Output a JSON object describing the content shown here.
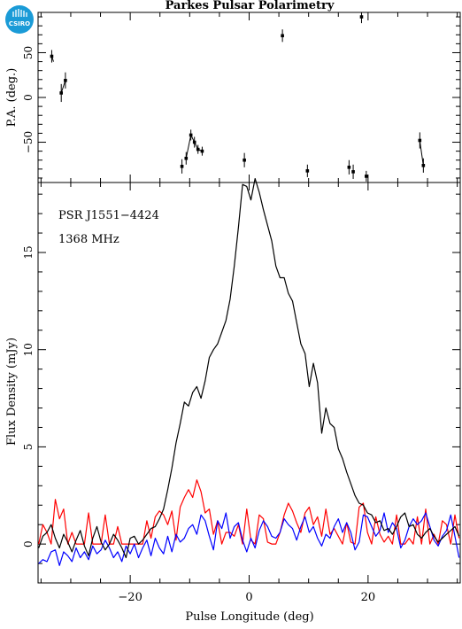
{
  "title": "Parkes Pulsar Polarimetry",
  "logo": {
    "text": "CSIRO",
    "color": "#1a9bd7"
  },
  "pulsar_label": "PSR J1551−4424",
  "freq_label": "1368 MHz",
  "colors": {
    "total": "#000000",
    "linear": "#ff0000",
    "circular": "#0000ff"
  },
  "chart_data": [
    {
      "type": "scatter",
      "title": "Parkes Pulsar Polarimetry",
      "ylabel": "P.A. (deg.)",
      "xlim": [
        -35.5,
        35.5
      ],
      "ylim": [
        -95,
        95
      ],
      "yticks": [
        -50,
        0,
        50
      ],
      "ytick_labels": [
        "−50",
        "0",
        "50"
      ],
      "points": [
        {
          "x": -33.2,
          "y": 46,
          "err": 7
        },
        {
          "x": -31.6,
          "y": 5,
          "err": 10
        },
        {
          "x": -30.9,
          "y": 19,
          "err": 9
        },
        {
          "x": -11.3,
          "y": -77,
          "err": 8
        },
        {
          "x": -10.6,
          "y": -68,
          "err": 7
        },
        {
          "x": -9.8,
          "y": -42,
          "err": 6
        },
        {
          "x": -9.2,
          "y": -50,
          "err": 6
        },
        {
          "x": -8.6,
          "y": -58,
          "err": 5
        },
        {
          "x": -7.9,
          "y": -60,
          "err": 5
        },
        {
          "x": -0.8,
          "y": -70,
          "err": 8
        },
        {
          "x": 5.6,
          "y": 69,
          "err": 7
        },
        {
          "x": 9.8,
          "y": -82,
          "err": 7
        },
        {
          "x": 16.8,
          "y": -78,
          "err": 8
        },
        {
          "x": 17.5,
          "y": -83,
          "err": 8
        },
        {
          "x": 18.9,
          "y": 90,
          "err": 7
        },
        {
          "x": 19.7,
          "y": -88,
          "err": 6
        },
        {
          "x": 28.7,
          "y": -48,
          "err": 9
        },
        {
          "x": 29.3,
          "y": -76,
          "err": 8
        }
      ],
      "segments": [
        [
          [
            -33.2,
            46
          ],
          [
            -32.9,
            40
          ]
        ],
        [
          [
            -31.6,
            5
          ],
          [
            -30.9,
            19
          ]
        ],
        [
          [
            -10.6,
            -68
          ],
          [
            -9.8,
            -42
          ],
          [
            -9.2,
            -50
          ],
          [
            -8.6,
            -58
          ],
          [
            -7.9,
            -60
          ]
        ],
        [
          [
            28.7,
            -48
          ],
          [
            29.3,
            -76
          ]
        ]
      ]
    },
    {
      "type": "line",
      "xlabel": "Pulse Longitude (deg)",
      "ylabel": "Flux Density (mJy)",
      "xlim": [
        -35.5,
        35.5
      ],
      "ylim": [
        -2,
        18.6
      ],
      "xticks": [
        -20,
        0,
        20
      ],
      "xtick_labels": [
        "−20",
        "0",
        "20"
      ],
      "yticks": [
        0,
        5,
        10,
        15
      ],
      "ytick_labels": [
        "0",
        "5",
        "10",
        "15"
      ],
      "x": [
        -35.4,
        -34.7,
        -34.0,
        -33.3,
        -32.6,
        -31.9,
        -31.2,
        -30.5,
        -29.8,
        -29.1,
        -28.4,
        -27.7,
        -27.0,
        -26.3,
        -25.6,
        -24.9,
        -24.2,
        -23.5,
        -22.8,
        -22.1,
        -21.4,
        -20.7,
        -20.0,
        -19.3,
        -18.6,
        -17.9,
        -17.2,
        -16.5,
        -15.8,
        -15.1,
        -14.4,
        -13.7,
        -13.0,
        -12.3,
        -11.6,
        -10.9,
        -10.2,
        -9.5,
        -8.8,
        -8.1,
        -7.4,
        -6.7,
        -6.0,
        -5.3,
        -4.6,
        -3.9,
        -3.2,
        -2.5,
        -1.8,
        -1.1,
        -0.4,
        0.3,
        1.0,
        1.7,
        2.4,
        3.1,
        3.8,
        4.5,
        5.2,
        5.9,
        6.6,
        7.3,
        8.0,
        8.7,
        9.4,
        10.1,
        10.8,
        11.5,
        12.2,
        12.9,
        13.6,
        14.3,
        15.0,
        15.7,
        16.4,
        17.1,
        17.8,
        18.5,
        19.2,
        19.9,
        20.6,
        21.3,
        22.0,
        22.7,
        23.4,
        24.1,
        24.8,
        25.5,
        26.2,
        26.9,
        27.6,
        28.3,
        29.0,
        29.7,
        30.4,
        31.1,
        31.8,
        32.5,
        33.2,
        33.9,
        34.6,
        35.3
      ],
      "series": [
        {
          "key": "total",
          "values": [
            -0.2,
            0.4,
            0.6,
            1.0,
            0.3,
            -0.2,
            0.5,
            0.1,
            -0.4,
            0.2,
            0.7,
            -0.1,
            -0.6,
            0.3,
            0.9,
            0.1,
            -0.3,
            0.0,
            0.5,
            0.2,
            -0.2,
            -0.7,
            0.3,
            0.4,
            0.0,
            0.2,
            0.5,
            0.8,
            0.9,
            1.3,
            1.8,
            2.8,
            3.9,
            5.2,
            6.2,
            7.3,
            7.1,
            7.8,
            8.1,
            7.5,
            8.4,
            9.6,
            10.0,
            10.3,
            10.9,
            11.5,
            12.6,
            14.3,
            16.3,
            18.5,
            18.4,
            17.7,
            18.8,
            18.1,
            17.2,
            16.4,
            15.6,
            14.3,
            13.7,
            13.7,
            12.9,
            12.5,
            11.4,
            10.3,
            9.8,
            8.1,
            9.3,
            8.3,
            5.7,
            7.0,
            6.2,
            6.0,
            4.9,
            4.4,
            3.7,
            3.1,
            2.5,
            2.1,
            2.0,
            1.6,
            1.5,
            1.1,
            1.2,
            0.7,
            0.8,
            0.5,
            0.9,
            1.4,
            1.6,
            0.9,
            1.0,
            0.5,
            0.3,
            0.6,
            0.8,
            0.4,
            0.1,
            0.3,
            0.5,
            0.7,
            0.9,
            0.4
          ]
        },
        {
          "key": "linear",
          "values": [
            0.0,
            1.0,
            0.6,
            0.0,
            2.3,
            1.3,
            1.8,
            0.0,
            0.6,
            0.0,
            0.0,
            0.0,
            1.6,
            0.0,
            0.0,
            0.0,
            1.5,
            0.0,
            0.0,
            0.9,
            0.0,
            0.0,
            0.0,
            0.0,
            0.0,
            0.0,
            1.2,
            0.3,
            1.4,
            1.7,
            1.5,
            1.0,
            1.7,
            0.2,
            1.9,
            2.4,
            2.8,
            2.4,
            3.3,
            2.7,
            1.6,
            1.8,
            0.5,
            1.2,
            0.0,
            0.6,
            0.6,
            0.4,
            1.0,
            0.0,
            1.8,
            0.2,
            0.0,
            1.5,
            1.3,
            0.1,
            0.0,
            0.0,
            0.6,
            1.5,
            2.1,
            1.7,
            1.1,
            0.6,
            1.6,
            1.9,
            1.0,
            1.4,
            0.4,
            1.8,
            0.5,
            0.8,
            0.4,
            0.0,
            1.1,
            0.1,
            0.0,
            1.9,
            2.1,
            0.6,
            0.0,
            1.4,
            0.5,
            0.1,
            0.4,
            0.0,
            1.5,
            0.0,
            0.0,
            0.3,
            0.0,
            1.4,
            0.0,
            1.8,
            0.0,
            0.5,
            0.0,
            1.2,
            1.0,
            0.0,
            1.5,
            0.3
          ]
        },
        {
          "key": "circular",
          "values": [
            -1.0,
            -0.8,
            -0.9,
            -0.4,
            -0.3,
            -1.1,
            -0.4,
            -0.6,
            -0.9,
            -0.2,
            -0.7,
            -0.4,
            -0.8,
            -0.1,
            -0.5,
            -0.3,
            0.2,
            -0.2,
            -0.7,
            -0.4,
            -0.9,
            -0.1,
            -0.5,
            0.0,
            -0.7,
            -0.2,
            0.2,
            -0.6,
            0.3,
            -0.2,
            -0.5,
            0.4,
            -0.4,
            0.5,
            0.1,
            0.3,
            0.8,
            1.0,
            0.5,
            1.5,
            1.2,
            0.4,
            -0.3,
            1.2,
            0.8,
            1.6,
            0.3,
            0.9,
            1.1,
            0.2,
            -0.4,
            0.3,
            -0.2,
            0.7,
            1.2,
            0.9,
            0.4,
            0.3,
            0.6,
            1.3,
            1.0,
            0.8,
            0.2,
            0.9,
            1.4,
            0.6,
            0.9,
            0.3,
            -0.1,
            0.5,
            0.3,
            0.9,
            1.3,
            0.6,
            1.1,
            0.6,
            -0.3,
            0.1,
            1.5,
            1.4,
            0.9,
            0.4,
            0.7,
            1.6,
            0.6,
            1.1,
            0.8,
            -0.2,
            0.2,
            0.9,
            1.3,
            1.0,
            1.2,
            1.6,
            0.9,
            0.2,
            -0.1,
            0.4,
            0.7,
            1.5,
            0.4,
            -0.7
          ]
        }
      ]
    }
  ]
}
